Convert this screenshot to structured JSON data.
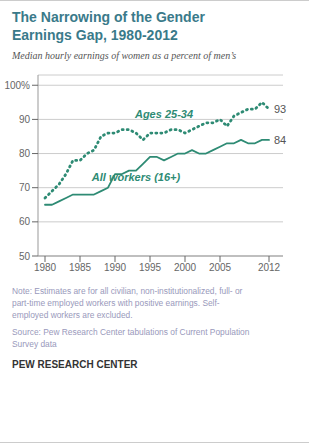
{
  "chart_data": {
    "type": "line",
    "title": "The Narrowing of the Gender\nEarnings Gap, 1980-2012",
    "subtitle": "Median hourly earnings of women as a percent of men’s",
    "note": "Note: Estimates are for all civilian, non-institutionalized, full- or\npart-time employed workers with positive earnings. Self-\nemployed workers are excluded.",
    "source": "Source: Pew Research Center tabulations of Current Population\nSurvey data",
    "branding": "PEW RESEARCH CENTER",
    "title_color": "#3a7a8a",
    "subtitle_color": "#555555",
    "note_color": "#9999bb",
    "source_color": "#9999bb",
    "branding_color": "#333333",
    "end_label_color": "#555555",
    "x": [
      1980,
      1981,
      1982,
      1983,
      1984,
      1985,
      1986,
      1987,
      1988,
      1989,
      1990,
      1991,
      1992,
      1993,
      1994,
      1995,
      1996,
      1997,
      1998,
      1999,
      2000,
      2001,
      2002,
      2003,
      2004,
      2005,
      2006,
      2007,
      2008,
      2009,
      2010,
      2011,
      2012
    ],
    "series": [
      {
        "name": "Ages 25-34",
        "color": "#2e8b74",
        "line_style": "dotted",
        "values": [
          67,
          69,
          71,
          74,
          78,
          78,
          80,
          81,
          85,
          86,
          86,
          87,
          87,
          86,
          84,
          86,
          86,
          86,
          87,
          87,
          86,
          87,
          88,
          89,
          89,
          90,
          88,
          91,
          92,
          93,
          93,
          95,
          93
        ],
        "end_label": "93",
        "name_position": {
          "x": 1997,
          "y": 91.5
        }
      },
      {
        "name": "All workers (16+)",
        "color": "#2e8b74",
        "line_style": "solid",
        "values": [
          65,
          65,
          66,
          67,
          68,
          68,
          68,
          68,
          69,
          70,
          74,
          74,
          75,
          75,
          77,
          79,
          79,
          78,
          79,
          80,
          80,
          81,
          80,
          80,
          81,
          82,
          83,
          83,
          84,
          83,
          83,
          84,
          84
        ],
        "end_label": "84",
        "name_position": {
          "x": 1993,
          "y": 73.0
        }
      }
    ],
    "xlim": [
      1979,
      2014
    ],
    "xticks": [
      1980,
      1985,
      1990,
      1995,
      2000,
      2005,
      2012
    ],
    "ylim": [
      50,
      103
    ],
    "yticks": [
      50,
      60,
      70,
      80,
      90,
      {
        "value": 100,
        "label": "100%"
      }
    ],
    "grid": "y"
  }
}
